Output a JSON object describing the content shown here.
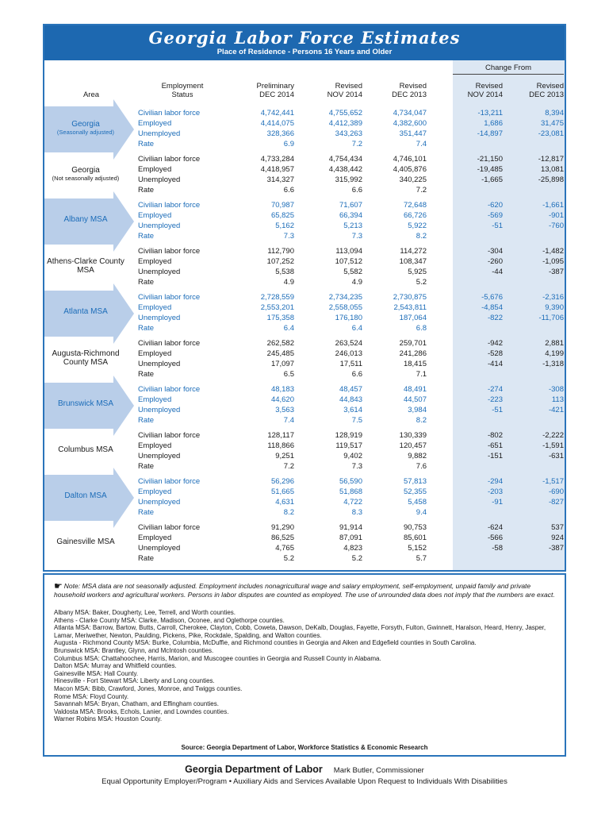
{
  "header": {
    "title": "Georgia Labor Force Estimates",
    "subtitle": "Place of Residence - Persons 16 Years and Older"
  },
  "table": {
    "columns": {
      "area": "Area",
      "status_l1": "Employment",
      "status_l2": "Status",
      "prelim_l1": "Preliminary",
      "prelim_l2": "DEC 2014",
      "nov_l1": "Revised",
      "nov_l2": "NOV 2014",
      "dec_l1": "Revised",
      "dec_l2": "DEC 2013",
      "change_from": "Change From",
      "chg_nov_l1": "Revised",
      "chg_nov_l2": "NOV 2014",
      "chg_dec_l1": "Revised",
      "chg_dec_l2": "DEC 2013"
    },
    "areas": [
      {
        "label": "Georgia",
        "sublabel": "(Seasonally adjusted)",
        "highlight": true,
        "rows": [
          {
            "status": "Civilian labor force",
            "prelim": "4,742,441",
            "nov": "4,755,652",
            "dec": "4,734,047",
            "chg_nov": "-13,211",
            "chg_dec": "8,394"
          },
          {
            "status": "Employed",
            "prelim": "4,414,075",
            "nov": "4,412,389",
            "dec": "4,382,600",
            "chg_nov": "1,686",
            "chg_dec": "31,475"
          },
          {
            "status": "Unemployed",
            "prelim": "328,366",
            "nov": "343,263",
            "dec": "351,447",
            "chg_nov": "-14,897",
            "chg_dec": "-23,081"
          },
          {
            "status": "Rate",
            "prelim": "6.9",
            "nov": "7.2",
            "dec": "7.4",
            "chg_nov": "",
            "chg_dec": ""
          }
        ]
      },
      {
        "label": "Georgia",
        "sublabel": "(Not seasonally adjusted)",
        "highlight": false,
        "rows": [
          {
            "status": "Civilian labor force",
            "prelim": "4,733,284",
            "nov": "4,754,434",
            "dec": "4,746,101",
            "chg_nov": "-21,150",
            "chg_dec": "-12,817"
          },
          {
            "status": "Employed",
            "prelim": "4,418,957",
            "nov": "4,438,442",
            "dec": "4,405,876",
            "chg_nov": "-19,485",
            "chg_dec": "13,081"
          },
          {
            "status": "Unemployed",
            "prelim": "314,327",
            "nov": "315,992",
            "dec": "340,225",
            "chg_nov": "-1,665",
            "chg_dec": "-25,898"
          },
          {
            "status": "Rate",
            "prelim": "6.6",
            "nov": "6.6",
            "dec": "7.2",
            "chg_nov": "",
            "chg_dec": ""
          }
        ]
      },
      {
        "label": "Albany MSA",
        "sublabel": "",
        "highlight": true,
        "rows": [
          {
            "status": "Civilian labor force",
            "prelim": "70,987",
            "nov": "71,607",
            "dec": "72,648",
            "chg_nov": "-620",
            "chg_dec": "-1,661"
          },
          {
            "status": "Employed",
            "prelim": "65,825",
            "nov": "66,394",
            "dec": "66,726",
            "chg_nov": "-569",
            "chg_dec": "-901"
          },
          {
            "status": "Unemployed",
            "prelim": "5,162",
            "nov": "5,213",
            "dec": "5,922",
            "chg_nov": "-51",
            "chg_dec": "-760"
          },
          {
            "status": "Rate",
            "prelim": "7.3",
            "nov": "7.3",
            "dec": "8.2",
            "chg_nov": "",
            "chg_dec": ""
          }
        ]
      },
      {
        "label": "Athens-Clarke County  MSA",
        "sublabel": "",
        "highlight": false,
        "rows": [
          {
            "status": "Civilian labor force",
            "prelim": "112,790",
            "nov": "113,094",
            "dec": "114,272",
            "chg_nov": "-304",
            "chg_dec": "-1,482"
          },
          {
            "status": "Employed",
            "prelim": "107,252",
            "nov": "107,512",
            "dec": "108,347",
            "chg_nov": "-260",
            "chg_dec": "-1,095"
          },
          {
            "status": "Unemployed",
            "prelim": "5,538",
            "nov": "5,582",
            "dec": "5,925",
            "chg_nov": "-44",
            "chg_dec": "-387"
          },
          {
            "status": "Rate",
            "prelim": "4.9",
            "nov": "4.9",
            "dec": "5.2",
            "chg_nov": "",
            "chg_dec": ""
          }
        ]
      },
      {
        "label": "Atlanta MSA",
        "sublabel": "",
        "highlight": true,
        "rows": [
          {
            "status": "Civilian labor force",
            "prelim": "2,728,559",
            "nov": "2,734,235",
            "dec": "2,730,875",
            "chg_nov": "-5,676",
            "chg_dec": "-2,316"
          },
          {
            "status": "Employed",
            "prelim": "2,553,201",
            "nov": "2,558,055",
            "dec": "2,543,811",
            "chg_nov": "-4,854",
            "chg_dec": "9,390"
          },
          {
            "status": "Unemployed",
            "prelim": "175,358",
            "nov": "176,180",
            "dec": "187,064",
            "chg_nov": "-822",
            "chg_dec": "-11,706"
          },
          {
            "status": "Rate",
            "prelim": "6.4",
            "nov": "6.4",
            "dec": "6.8",
            "chg_nov": "",
            "chg_dec": ""
          }
        ]
      },
      {
        "label": "Augusta-Richmond County MSA",
        "sublabel": "",
        "highlight": false,
        "rows": [
          {
            "status": "Civilian labor force",
            "prelim": "262,582",
            "nov": "263,524",
            "dec": "259,701",
            "chg_nov": "-942",
            "chg_dec": "2,881"
          },
          {
            "status": "Employed",
            "prelim": "245,485",
            "nov": "246,013",
            "dec": "241,286",
            "chg_nov": "-528",
            "chg_dec": "4,199"
          },
          {
            "status": "Unemployed",
            "prelim": "17,097",
            "nov": "17,511",
            "dec": "18,415",
            "chg_nov": "-414",
            "chg_dec": "-1,318"
          },
          {
            "status": "Rate",
            "prelim": "6.5",
            "nov": "6.6",
            "dec": "7.1",
            "chg_nov": "",
            "chg_dec": ""
          }
        ]
      },
      {
        "label": "Brunswick MSA",
        "sublabel": "",
        "highlight": true,
        "rows": [
          {
            "status": "Civilian labor force",
            "prelim": "48,183",
            "nov": "48,457",
            "dec": "48,491",
            "chg_nov": "-274",
            "chg_dec": "-308"
          },
          {
            "status": "Employed",
            "prelim": "44,620",
            "nov": "44,843",
            "dec": "44,507",
            "chg_nov": "-223",
            "chg_dec": "113"
          },
          {
            "status": "Unemployed",
            "prelim": "3,563",
            "nov": "3,614",
            "dec": "3,984",
            "chg_nov": "-51",
            "chg_dec": "-421"
          },
          {
            "status": "Rate",
            "prelim": "7.4",
            "nov": "7.5",
            "dec": "8.2",
            "chg_nov": "",
            "chg_dec": ""
          }
        ]
      },
      {
        "label": "Columbus MSA",
        "sublabel": "",
        "highlight": false,
        "rows": [
          {
            "status": "Civilian labor force",
            "prelim": "128,117",
            "nov": "128,919",
            "dec": "130,339",
            "chg_nov": "-802",
            "chg_dec": "-2,222"
          },
          {
            "status": "Employed",
            "prelim": "118,866",
            "nov": "119,517",
            "dec": "120,457",
            "chg_nov": "-651",
            "chg_dec": "-1,591"
          },
          {
            "status": "Unemployed",
            "prelim": "9,251",
            "nov": "9,402",
            "dec": "9,882",
            "chg_nov": "-151",
            "chg_dec": "-631"
          },
          {
            "status": "Rate",
            "prelim": "7.2",
            "nov": "7.3",
            "dec": "7.6",
            "chg_nov": "",
            "chg_dec": ""
          }
        ]
      },
      {
        "label": "Dalton MSA",
        "sublabel": "",
        "highlight": true,
        "rows": [
          {
            "status": "Civilian labor force",
            "prelim": "56,296",
            "nov": "56,590",
            "dec": "57,813",
            "chg_nov": "-294",
            "chg_dec": "-1,517"
          },
          {
            "status": "Employed",
            "prelim": "51,665",
            "nov": "51,868",
            "dec": "52,355",
            "chg_nov": "-203",
            "chg_dec": "-690"
          },
          {
            "status": "Unemployed",
            "prelim": "4,631",
            "nov": "4,722",
            "dec": "5,458",
            "chg_nov": "-91",
            "chg_dec": "-827"
          },
          {
            "status": "Rate",
            "prelim": "8.2",
            "nov": "8.3",
            "dec": "9.4",
            "chg_nov": "",
            "chg_dec": ""
          }
        ]
      },
      {
        "label": "Gainesville MSA",
        "sublabel": "",
        "highlight": false,
        "rows": [
          {
            "status": "Civilian labor force",
            "prelim": "91,290",
            "nov": "91,914",
            "dec": "90,753",
            "chg_nov": "-624",
            "chg_dec": "537"
          },
          {
            "status": "Employed",
            "prelim": "86,525",
            "nov": "87,091",
            "dec": "85,601",
            "chg_nov": "-566",
            "chg_dec": "924"
          },
          {
            "status": "Unemployed",
            "prelim": "4,765",
            "nov": "4,823",
            "dec": "5,152",
            "chg_nov": "-58",
            "chg_dec": "-387"
          },
          {
            "status": "Rate",
            "prelim": "5.2",
            "nov": "5.2",
            "dec": "5.7",
            "chg_nov": "",
            "chg_dec": ""
          }
        ]
      }
    ]
  },
  "notes": {
    "hand_icon": "☛",
    "note": "Note: MSA data are not seasonally adjusted. Employment includes nonagricultural wage and salary employment, self-employment, unpaid family and private household workers and agricultural workers. Persons in labor disputes are counted as employed. The use of unrounded data does not imply that the numbers are exact.",
    "definitions": [
      "Albany MSA: Baker, Dougherty, Lee, Terrell, and Worth counties.",
      "Athens - Clarke County MSA: Clarke, Madison, Oconee, and Oglethorpe counties.",
      "Atlanta MSA: Barrow, Bartow, Butts, Carroll, Cherokee, Clayton, Cobb, Coweta, Dawson, DeKalb, Douglas, Fayette, Forsyth, Fulton, Gwinnett, Haralson,  Heard, Henry, Jasper, Lamar, Meriwether, Newton, Paulding, Pickens, Pike, Rockdale, Spalding, and Walton counties.",
      "Augusta - Richmond County MSA: Burke, Columbia, McDuffie, and Richmond counties in Georgia and Aiken and Edgefield counties in South Carolina.",
      "Brunswick MSA: Brantley, Glynn, and McIntosh counties.",
      "Columbus MSA: Chattahoochee, Harris, Marion, and Muscogee counties in Georgia and Russell County in Alabama.",
      "Dalton MSA: Murray and Whitfield counties.",
      "Gainesville MSA: Hall County.",
      "Hinesville - Fort Stewart MSA: Liberty and Long counties.",
      "Macon MSA: Bibb, Crawford, Jones, Monroe, and Twiggs counties.",
      "Rome MSA: Floyd County.",
      "Savannah MSA: Bryan, Chatham, and Effingham counties.",
      "Valdosta MSA: Brooks, Echols, Lanier, and Lowndes counties.",
      "Warner Robins MSA: Houston County."
    ],
    "source": "Source:  Georgia Department of Labor, Workforce Statistics & Economic Research"
  },
  "footer": {
    "org": "Georgia Department of Labor",
    "commissioner": "Mark Butler, Commissioner",
    "eeo": "Equal Opportunity Employer/Program • Auxiliary Aids and Services Available Upon Request to Individuals With Disabilities"
  },
  "colors": {
    "header_blue": "#1d68b0",
    "border_blue": "#2a74ba",
    "arrow_blue": "#b9cee9",
    "panel_blue": "#dce7f3",
    "text_blue": "#1b6cb8"
  }
}
